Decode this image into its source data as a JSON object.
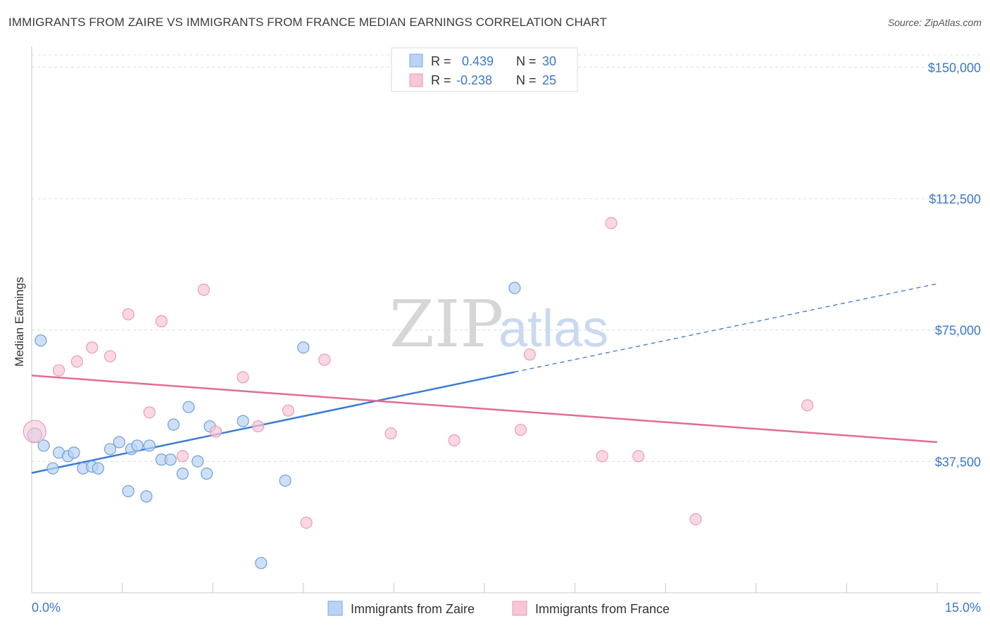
{
  "title": "IMMIGRANTS FROM ZAIRE VS IMMIGRANTS FROM FRANCE MEDIAN EARNINGS CORRELATION CHART",
  "source": "Source: ZipAtlas.com",
  "watermark": {
    "zip": "ZIP",
    "atlas": "atlas"
  },
  "colors": {
    "zaire": "#3a7bd5",
    "zaire_fill": "#b8d3f5",
    "france": "#e26b95",
    "france_fill": "#f8c6d6",
    "tick": "#3b78c8"
  },
  "legend_top": [
    {
      "r_label": "R =",
      "r_value": "0.439",
      "n_label": "N =",
      "n_value": "30"
    },
    {
      "r_label": "R =",
      "r_value": "-0.238",
      "n_label": "N =",
      "n_value": "25"
    }
  ],
  "legend_bottom": [
    "Immigrants from Zaire",
    "Immigrants from France"
  ],
  "chart_data": {
    "type": "scatter",
    "title": "IMMIGRANTS FROM ZAIRE VS IMMIGRANTS FROM FRANCE MEDIAN EARNINGS CORRELATION CHART",
    "xlabel": "",
    "ylabel": "Median Earnings",
    "xlim": [
      0,
      15
    ],
    "ylim": [
      0,
      153500
    ],
    "x_tick_labels": [
      "0.0%",
      "15.0%"
    ],
    "y_ticks": [
      37500,
      75000,
      112500,
      150000
    ],
    "y_tick_labels": [
      "$37,500",
      "$75,000",
      "$112,500",
      "$150,000"
    ],
    "grid": true,
    "legend_position": "top-center",
    "series": [
      {
        "name": "Immigrants from Zaire",
        "x": [
          0.05,
          0.2,
          0.35,
          0.45,
          0.6,
          0.7,
          0.85,
          1.0,
          1.1,
          1.3,
          1.45,
          1.6,
          1.65,
          1.75,
          1.95,
          2.15,
          2.3,
          2.35,
          2.5,
          2.6,
          2.75,
          2.9,
          2.95,
          3.5,
          3.8,
          4.2,
          4.5,
          8.0,
          0.15,
          1.9
        ],
        "y": [
          45000,
          42000,
          35500,
          40000,
          39000,
          40000,
          35500,
          36000,
          35500,
          41000,
          43000,
          29000,
          41000,
          42000,
          42000,
          38000,
          38000,
          48000,
          34000,
          53000,
          37500,
          34000,
          47500,
          49000,
          8500,
          32000,
          70000,
          87000,
          72000,
          27500
        ]
      },
      {
        "name": "Immigrants from France",
        "x": [
          0.05,
          0.45,
          0.75,
          1.0,
          1.3,
          1.6,
          1.95,
          2.15,
          2.5,
          2.85,
          3.05,
          3.5,
          3.75,
          4.25,
          4.55,
          4.85,
          5.95,
          7.0,
          8.1,
          8.25,
          9.45,
          9.6,
          10.05,
          11.0,
          12.85
        ],
        "y": [
          46000,
          63500,
          66000,
          70000,
          67500,
          79500,
          51500,
          77500,
          39000,
          86500,
          46000,
          61500,
          47500,
          52000,
          20000,
          66500,
          45500,
          43500,
          46500,
          68000,
          39000,
          105500,
          39000,
          21000,
          53500
        ]
      }
    ],
    "trend_lines": [
      {
        "series": "Immigrants from Zaire",
        "x": [
          0,
          8.0
        ],
        "y": [
          34200,
          63000
        ],
        "dashed_extension_to_x": 15.0
      },
      {
        "series": "Immigrants from France",
        "x": [
          0,
          15.0
        ],
        "y": [
          62000,
          43000
        ]
      }
    ]
  }
}
